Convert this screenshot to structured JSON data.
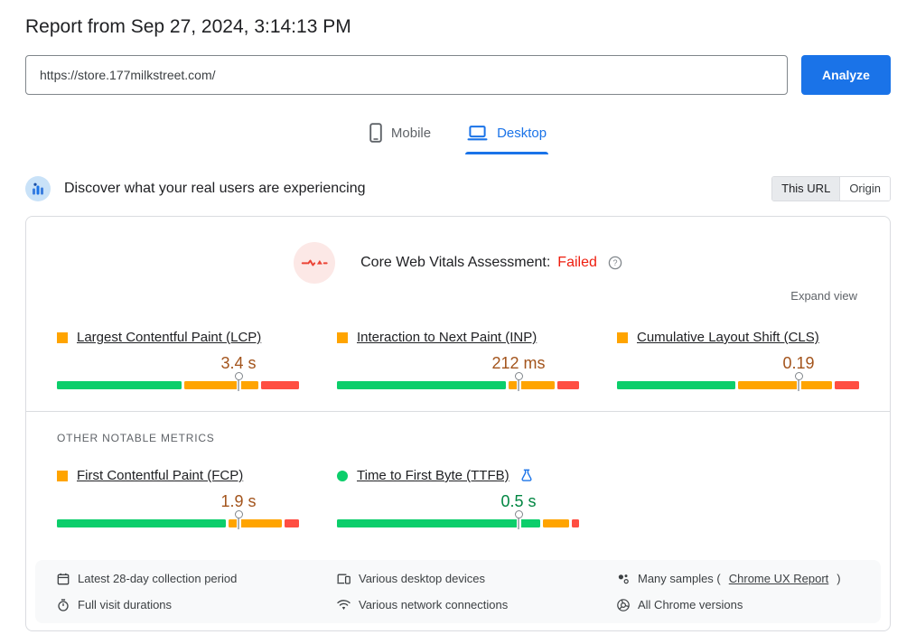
{
  "report": {
    "title": "Report from Sep 27, 2024, 3:14:13 PM"
  },
  "search": {
    "url": "https://store.177milkstreet.com/",
    "analyze": "Analyze"
  },
  "tabs": {
    "mobile": "Mobile",
    "desktop": "Desktop",
    "active": "Desktop"
  },
  "crux": {
    "heading": "Discover what your real users are experiencing",
    "scope": {
      "this_url": "This URL",
      "origin": "Origin",
      "selected": "This URL"
    },
    "assessment_label": "Core Web Vitals Assessment:",
    "assessment_status": "Failed",
    "expand_label": "Expand view",
    "other_metrics_heading": "OTHER NOTABLE METRICS",
    "metrics": [
      {
        "id": "lcp",
        "name": "Largest Contentful Paint (LCP)",
        "value": "3.4 s",
        "rating": "needs-improvement",
        "distribution": {
          "good": 52,
          "needs_improvement": 31,
          "poor": 16
        },
        "p75_percent": 75
      },
      {
        "id": "inp",
        "name": "Interaction to Next Paint (INP)",
        "value": "212 ms",
        "rating": "needs-improvement",
        "distribution": {
          "good": 70,
          "needs_improvement": 19,
          "poor": 9
        },
        "p75_percent": 75
      },
      {
        "id": "cls",
        "name": "Cumulative Layout Shift (CLS)",
        "value": "0.19",
        "rating": "needs-improvement",
        "distribution": {
          "good": 49,
          "needs_improvement": 39,
          "poor": 10
        },
        "p75_percent": 75
      },
      {
        "id": "fcp",
        "name": "First Contentful Paint (FCP)",
        "value": "1.9 s",
        "rating": "needs-improvement",
        "distribution": {
          "good": 70,
          "needs_improvement": 22,
          "poor": 6
        },
        "p75_percent": 75
      },
      {
        "id": "ttfb",
        "name": "Time to First Byte (TTFB)",
        "value": "0.5 s",
        "rating": "good",
        "distribution": {
          "good": 84,
          "needs_improvement": 11,
          "poor": 3
        },
        "p75_percent": 75
      }
    ],
    "footer": {
      "collection_period": "Latest 28-day collection period",
      "devices": "Various desktop devices",
      "samples_prefix": "Many samples (",
      "samples_link": "Chrome UX Report",
      "samples_suffix": ")",
      "durations": "Full visit durations",
      "connections": "Various network connections",
      "versions": "All Chrome versions"
    }
  },
  "colors": {
    "good": "#0cce6b",
    "needs_improvement": "#ffa400",
    "poor": "#ff4e42",
    "accent_blue": "#1a73e8",
    "failed_red": "#ee1d0e",
    "value_needs_improvement": "#a3541c",
    "value_good": "#018642"
  }
}
